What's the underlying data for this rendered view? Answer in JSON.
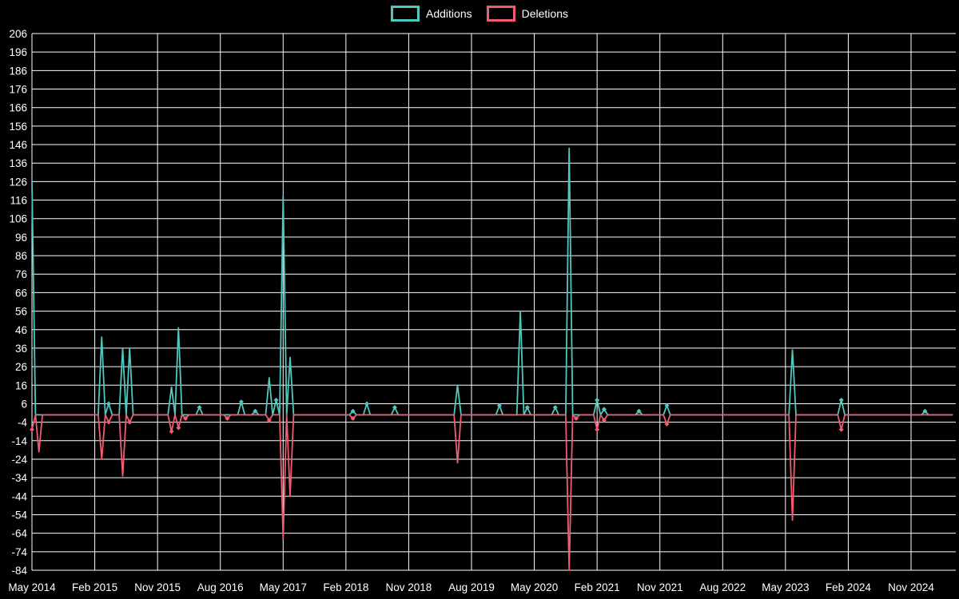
{
  "legend": {
    "items": [
      {
        "label": "Additions",
        "color": "#4EC9C0"
      },
      {
        "label": "Deletions",
        "color": "#F25C72"
      }
    ]
  },
  "colors": {
    "background": "#000000",
    "grid": "#FFFFFF",
    "text": "#FFFFFF",
    "additions": "#4EC9C0",
    "deletions": "#F25C72"
  },
  "chart_data": {
    "type": "line",
    "legend_position": "top-center",
    "grid": true,
    "baseline": 0,
    "x_axis": {
      "start_date": "2014-05",
      "end_date": "2025-05",
      "tick_labels": [
        "May 2014",
        "Feb 2015",
        "Nov 2015",
        "Aug 2016",
        "May 2017",
        "Feb 2018",
        "Nov 2018",
        "Aug 2019",
        "May 2020",
        "Feb 2021",
        "Nov 2021",
        "Aug 2022",
        "May 2023",
        "Feb 2024",
        "Nov 2024"
      ],
      "tick_dates": [
        "2014-05",
        "2015-02",
        "2015-11",
        "2016-08",
        "2017-05",
        "2018-02",
        "2018-11",
        "2019-08",
        "2020-05",
        "2021-02",
        "2021-11",
        "2022-08",
        "2023-05",
        "2024-02",
        "2024-11"
      ]
    },
    "y_axis": {
      "min": -84,
      "max": 206,
      "ticks": [
        206,
        196,
        186,
        176,
        166,
        156,
        146,
        136,
        126,
        116,
        106,
        96,
        86,
        76,
        66,
        56,
        46,
        36,
        26,
        16,
        6,
        -4,
        -14,
        -24,
        -34,
        -44,
        -54,
        -64,
        -74,
        -84
      ]
    },
    "series": [
      {
        "name": "Additions",
        "color": "#4EC9C0",
        "default_value": 0,
        "points": [
          {
            "date": "2014-05",
            "value": 126
          },
          {
            "date": "2015-03",
            "value": 42
          },
          {
            "date": "2015-04",
            "value": 6
          },
          {
            "date": "2015-06",
            "value": 36
          },
          {
            "date": "2015-07",
            "value": 36
          },
          {
            "date": "2016-01",
            "value": 15
          },
          {
            "date": "2016-02",
            "value": 47
          },
          {
            "date": "2016-05",
            "value": 4
          },
          {
            "date": "2016-11",
            "value": 7
          },
          {
            "date": "2017-01",
            "value": 2
          },
          {
            "date": "2017-03",
            "value": 20
          },
          {
            "date": "2017-04",
            "value": 8
          },
          {
            "date": "2017-05",
            "value": 118
          },
          {
            "date": "2017-06",
            "value": 31
          },
          {
            "date": "2018-03",
            "value": 2
          },
          {
            "date": "2018-05",
            "value": 6
          },
          {
            "date": "2018-09",
            "value": 4
          },
          {
            "date": "2019-06",
            "value": 16
          },
          {
            "date": "2019-12",
            "value": 5
          },
          {
            "date": "2020-03",
            "value": 56
          },
          {
            "date": "2020-04",
            "value": 4
          },
          {
            "date": "2020-08",
            "value": 4
          },
          {
            "date": "2020-10",
            "value": 144
          },
          {
            "date": "2021-02",
            "value": 8
          },
          {
            "date": "2021-03",
            "value": 3
          },
          {
            "date": "2021-08",
            "value": 2
          },
          {
            "date": "2021-12",
            "value": 5
          },
          {
            "date": "2023-06",
            "value": 35
          },
          {
            "date": "2024-01",
            "value": 8
          },
          {
            "date": "2025-01",
            "value": 2
          }
        ]
      },
      {
        "name": "Deletions",
        "color": "#F25C72",
        "default_value": 0,
        "points": [
          {
            "date": "2014-05",
            "value": -8
          },
          {
            "date": "2014-06",
            "value": -20
          },
          {
            "date": "2015-03",
            "value": -24
          },
          {
            "date": "2015-04",
            "value": -4
          },
          {
            "date": "2015-06",
            "value": -33
          },
          {
            "date": "2015-07",
            "value": -4
          },
          {
            "date": "2016-01",
            "value": -9
          },
          {
            "date": "2016-02",
            "value": -7
          },
          {
            "date": "2016-03",
            "value": -2
          },
          {
            "date": "2016-09",
            "value": -2
          },
          {
            "date": "2017-03",
            "value": -3
          },
          {
            "date": "2017-05",
            "value": -67
          },
          {
            "date": "2017-06",
            "value": -44
          },
          {
            "date": "2018-03",
            "value": -2
          },
          {
            "date": "2019-06",
            "value": -26
          },
          {
            "date": "2020-10",
            "value": -84
          },
          {
            "date": "2020-11",
            "value": -2
          },
          {
            "date": "2021-02",
            "value": -8
          },
          {
            "date": "2021-03",
            "value": -3
          },
          {
            "date": "2021-12",
            "value": -5
          },
          {
            "date": "2023-06",
            "value": -57
          },
          {
            "date": "2024-01",
            "value": -8
          }
        ]
      }
    ]
  }
}
